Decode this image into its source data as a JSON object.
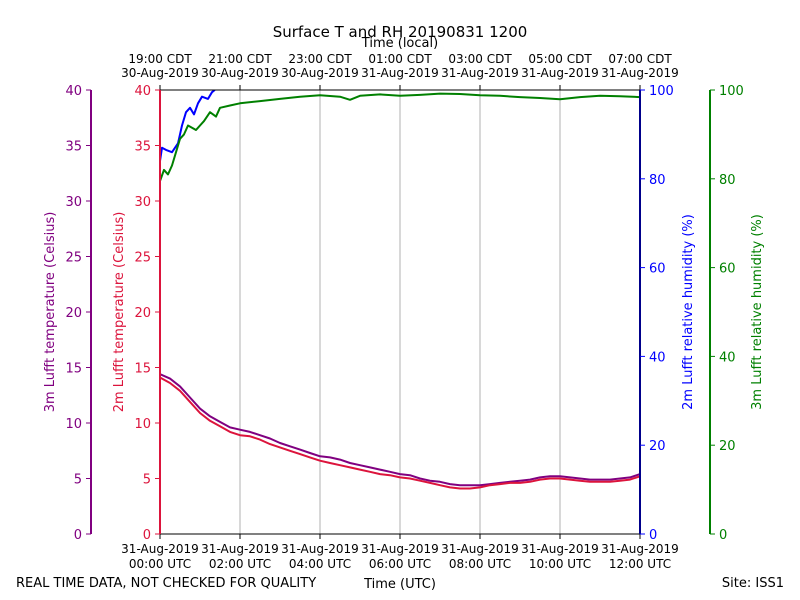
{
  "chart_data": {
    "type": "line",
    "title": "Surface T and RH 20190831 1200",
    "top_axis_label": "Time (local)",
    "xlabel": "Time (UTC)",
    "footer_left": "REAL TIME DATA, NOT CHECKED FOR QUALITY",
    "footer_right": "Site: ISS1",
    "colors": {
      "t3m": "#800080",
      "t2m": "#dc143c",
      "rh2m": "#0000ff",
      "rh3m": "#008000",
      "grid": "#b0b0b0"
    },
    "x_range_hours": [
      0,
      12
    ],
    "bottom_ticks": [
      {
        "h": 0,
        "line1": "31-Aug-2019",
        "line2": "00:00 UTC"
      },
      {
        "h": 2,
        "line1": "31-Aug-2019",
        "line2": "02:00 UTC"
      },
      {
        "h": 4,
        "line1": "31-Aug-2019",
        "line2": "04:00 UTC"
      },
      {
        "h": 6,
        "line1": "31-Aug-2019",
        "line2": "06:00 UTC"
      },
      {
        "h": 8,
        "line1": "31-Aug-2019",
        "line2": "08:00 UTC"
      },
      {
        "h": 10,
        "line1": "31-Aug-2019",
        "line2": "10:00 UTC"
      },
      {
        "h": 12,
        "line1": "31-Aug-2019",
        "line2": "12:00 UTC"
      }
    ],
    "top_ticks": [
      {
        "h": 0,
        "line1": "19:00 CDT",
        "line2": "30-Aug-2019"
      },
      {
        "h": 2,
        "line1": "21:00 CDT",
        "line2": "30-Aug-2019"
      },
      {
        "h": 4,
        "line1": "23:00 CDT",
        "line2": "30-Aug-2019"
      },
      {
        "h": 6,
        "line1": "01:00 CDT",
        "line2": "31-Aug-2019"
      },
      {
        "h": 8,
        "line1": "03:00 CDT",
        "line2": "31-Aug-2019"
      },
      {
        "h": 10,
        "line1": "05:00 CDT",
        "line2": "31-Aug-2019"
      },
      {
        "h": 12,
        "line1": "07:00 CDT",
        "line2": "31-Aug-2019"
      }
    ],
    "axes": {
      "t3m": {
        "label": "3m Lufft temperature (Celsius)",
        "range": [
          0,
          40
        ],
        "ticks": [
          0,
          5,
          10,
          15,
          20,
          25,
          30,
          35,
          40
        ]
      },
      "t2m": {
        "label": "2m Lufft temperature (Celsius)",
        "range": [
          0,
          40
        ],
        "ticks": [
          0,
          5,
          10,
          15,
          20,
          25,
          30,
          35,
          40
        ]
      },
      "rh2m": {
        "label": "2m Lufft relative humidity (%)",
        "range": [
          0,
          100
        ],
        "ticks": [
          0,
          20,
          40,
          60,
          80,
          100
        ]
      },
      "rh3m": {
        "label": "3m Lufft relative humidity (%)",
        "range": [
          0,
          100
        ],
        "ticks": [
          0,
          20,
          40,
          60,
          80,
          100
        ]
      }
    },
    "series": [
      {
        "name": "3m Lufft temperature",
        "axis": "t3m",
        "color_key": "t3m",
        "points": [
          [
            0,
            14.4
          ],
          [
            0.25,
            14.0
          ],
          [
            0.5,
            13.3
          ],
          [
            0.75,
            12.3
          ],
          [
            1.0,
            11.3
          ],
          [
            1.25,
            10.6
          ],
          [
            1.5,
            10.1
          ],
          [
            1.75,
            9.6
          ],
          [
            2.0,
            9.4
          ],
          [
            2.25,
            9.2
          ],
          [
            2.5,
            8.9
          ],
          [
            2.75,
            8.6
          ],
          [
            3.0,
            8.2
          ],
          [
            3.25,
            7.9
          ],
          [
            3.5,
            7.6
          ],
          [
            3.75,
            7.3
          ],
          [
            4.0,
            7.0
          ],
          [
            4.25,
            6.9
          ],
          [
            4.5,
            6.7
          ],
          [
            4.75,
            6.4
          ],
          [
            5.0,
            6.2
          ],
          [
            5.25,
            6.0
          ],
          [
            5.5,
            5.8
          ],
          [
            5.75,
            5.6
          ],
          [
            6.0,
            5.4
          ],
          [
            6.25,
            5.3
          ],
          [
            6.5,
            5.0
          ],
          [
            6.75,
            4.8
          ],
          [
            7.0,
            4.7
          ],
          [
            7.25,
            4.5
          ],
          [
            7.5,
            4.4
          ],
          [
            7.75,
            4.4
          ],
          [
            8.0,
            4.4
          ],
          [
            8.25,
            4.5
          ],
          [
            8.5,
            4.6
          ],
          [
            8.75,
            4.7
          ],
          [
            9.0,
            4.8
          ],
          [
            9.25,
            4.9
          ],
          [
            9.5,
            5.1
          ],
          [
            9.75,
            5.2
          ],
          [
            10.0,
            5.2
          ],
          [
            10.25,
            5.1
          ],
          [
            10.5,
            5.0
          ],
          [
            10.75,
            4.9
          ],
          [
            11.0,
            4.9
          ],
          [
            11.25,
            4.9
          ],
          [
            11.5,
            5.0
          ],
          [
            11.75,
            5.1
          ],
          [
            12.0,
            5.4
          ]
        ]
      },
      {
        "name": "2m Lufft temperature",
        "axis": "t2m",
        "color_key": "t2m",
        "points": [
          [
            0,
            14.1
          ],
          [
            0.25,
            13.6
          ],
          [
            0.5,
            12.9
          ],
          [
            0.75,
            11.9
          ],
          [
            1.0,
            10.9
          ],
          [
            1.25,
            10.2
          ],
          [
            1.5,
            9.7
          ],
          [
            1.75,
            9.2
          ],
          [
            2.0,
            8.9
          ],
          [
            2.25,
            8.8
          ],
          [
            2.5,
            8.5
          ],
          [
            2.75,
            8.1
          ],
          [
            3.0,
            7.8
          ],
          [
            3.25,
            7.5
          ],
          [
            3.5,
            7.2
          ],
          [
            3.75,
            6.9
          ],
          [
            4.0,
            6.6
          ],
          [
            4.25,
            6.4
          ],
          [
            4.5,
            6.2
          ],
          [
            4.75,
            6.0
          ],
          [
            5.0,
            5.8
          ],
          [
            5.25,
            5.6
          ],
          [
            5.5,
            5.4
          ],
          [
            5.75,
            5.3
          ],
          [
            6.0,
            5.1
          ],
          [
            6.25,
            5.0
          ],
          [
            6.5,
            4.8
          ],
          [
            6.75,
            4.6
          ],
          [
            7.0,
            4.4
          ],
          [
            7.25,
            4.2
          ],
          [
            7.5,
            4.1
          ],
          [
            7.75,
            4.1
          ],
          [
            8.0,
            4.2
          ],
          [
            8.25,
            4.4
          ],
          [
            8.5,
            4.5
          ],
          [
            8.75,
            4.6
          ],
          [
            9.0,
            4.6
          ],
          [
            9.25,
            4.7
          ],
          [
            9.5,
            4.9
          ],
          [
            9.75,
            5.0
          ],
          [
            10.0,
            5.0
          ],
          [
            10.25,
            4.9
          ],
          [
            10.5,
            4.8
          ],
          [
            10.75,
            4.7
          ],
          [
            11.0,
            4.7
          ],
          [
            11.25,
            4.7
          ],
          [
            11.5,
            4.8
          ],
          [
            11.75,
            4.9
          ],
          [
            12.0,
            5.2
          ]
        ]
      },
      {
        "name": "2m Lufft relative humidity",
        "axis": "rh2m",
        "color_key": "rh2m",
        "points": [
          [
            0,
            84
          ],
          [
            0.05,
            87
          ],
          [
            0.15,
            86.5
          ],
          [
            0.3,
            86
          ],
          [
            0.45,
            88
          ],
          [
            0.55,
            92
          ],
          [
            0.65,
            95
          ],
          [
            0.75,
            96
          ],
          [
            0.85,
            94.5
          ],
          [
            0.95,
            97
          ],
          [
            1.05,
            98.5
          ],
          [
            1.2,
            98
          ],
          [
            1.3,
            99.5
          ],
          [
            1.37,
            100
          ]
        ]
      },
      {
        "name": "3m Lufft relative humidity",
        "axis": "rh3m",
        "color_key": "rh3m",
        "points": [
          [
            0,
            79.5
          ],
          [
            0.1,
            82
          ],
          [
            0.2,
            81
          ],
          [
            0.3,
            83
          ],
          [
            0.4,
            86
          ],
          [
            0.5,
            89
          ],
          [
            0.6,
            90
          ],
          [
            0.7,
            92
          ],
          [
            0.8,
            91.5
          ],
          [
            0.9,
            91
          ],
          [
            1.0,
            92
          ],
          [
            1.1,
            93
          ],
          [
            1.25,
            95
          ],
          [
            1.4,
            94
          ],
          [
            1.5,
            96
          ],
          [
            1.75,
            96.5
          ],
          [
            2.0,
            97
          ],
          [
            2.5,
            97.5
          ],
          [
            3.0,
            98
          ],
          [
            3.5,
            98.5
          ],
          [
            4.0,
            98.8
          ],
          [
            4.5,
            98.5
          ],
          [
            4.75,
            97.8
          ],
          [
            5.0,
            98.7
          ],
          [
            5.5,
            99.0
          ],
          [
            6.0,
            98.7
          ],
          [
            6.5,
            98.9
          ],
          [
            7.0,
            99.2
          ],
          [
            7.5,
            99.1
          ],
          [
            8.0,
            98.8
          ],
          [
            8.5,
            98.7
          ],
          [
            9.0,
            98.4
          ],
          [
            9.5,
            98.2
          ],
          [
            10.0,
            97.9
          ],
          [
            10.5,
            98.4
          ],
          [
            11.0,
            98.7
          ],
          [
            11.5,
            98.6
          ],
          [
            12.0,
            98.4
          ]
        ]
      }
    ]
  }
}
